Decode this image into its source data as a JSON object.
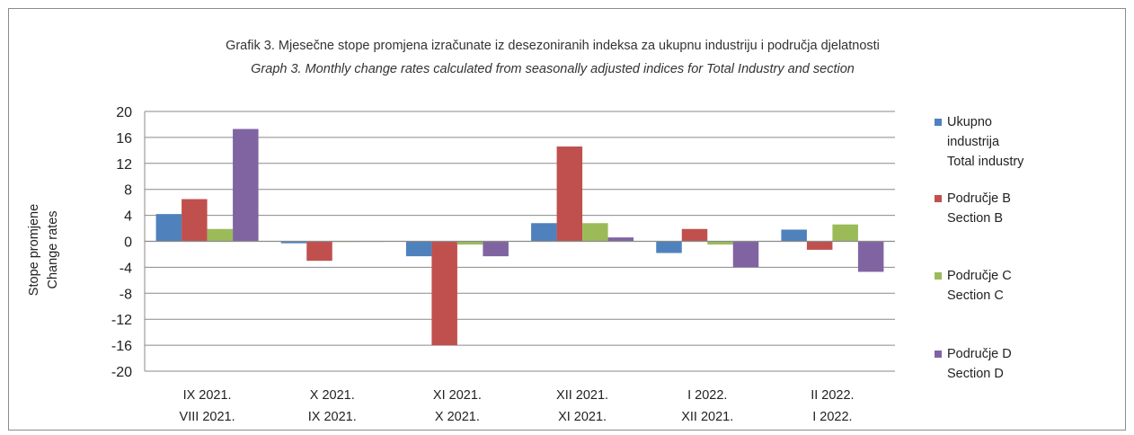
{
  "chart_data": {
    "type": "bar",
    "title": "Grafik 3. Mjesečne stope promjena izračunate iz desezoniranih indeksa za ukupnu industriju i područja djelatnosti",
    "subtitle": "Graph 3. Monthly change rates calculated from seasonally adjusted indices for Total Industry and section",
    "ylabel": [
      "Stope promjene",
      "Change rates"
    ],
    "ylim": [
      -20,
      20
    ],
    "yticks": [
      20,
      16,
      12,
      8,
      4,
      0,
      -4,
      -8,
      -12,
      -16,
      -20
    ],
    "grid": true,
    "legend_position": "right",
    "categories": [
      [
        "IX 2021.",
        "VIII 2021."
      ],
      [
        "X 2021.",
        "IX 2021."
      ],
      [
        "XI 2021.",
        "X 2021."
      ],
      [
        "XII 2021.",
        "XI 2021."
      ],
      [
        "I 2022.",
        "XII 2021."
      ],
      [
        "II 2022.",
        "I 2022."
      ]
    ],
    "series": [
      {
        "name": [
          "Ukupno",
          "industrija",
          "Total industry"
        ],
        "color": "#4f81bd",
        "values": [
          4.2,
          -0.3,
          -2.3,
          2.8,
          -1.8,
          1.8
        ]
      },
      {
        "name": [
          "Područje B",
          "Section B"
        ],
        "color": "#c0504d",
        "values": [
          6.5,
          -3.0,
          -16.0,
          14.6,
          1.9,
          -1.3
        ]
      },
      {
        "name": [
          "Područje C",
          "Section C"
        ],
        "color": "#9bbb59",
        "values": [
          1.9,
          -0.1,
          -0.5,
          2.8,
          -0.5,
          2.6
        ]
      },
      {
        "name": [
          "Područje D",
          "Section D"
        ],
        "color": "#8064a2",
        "values": [
          17.3,
          0.0,
          -2.3,
          0.6,
          -4.0,
          -4.7
        ]
      }
    ]
  }
}
